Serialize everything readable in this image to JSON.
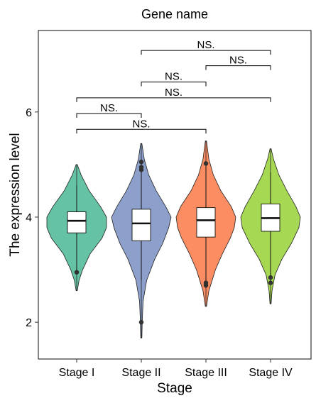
{
  "chart_data": {
    "type": "violin",
    "title": "Gene name",
    "xlabel": "Stage",
    "ylabel": "The expression level",
    "ylim": [
      1.3,
      7.55
    ],
    "yticks": [
      2,
      4,
      6
    ],
    "categories": [
      "Stage I",
      "Stage II",
      "Stage III",
      "Stage IV"
    ],
    "colors": [
      "#66c2a5",
      "#8da0cb",
      "#fc8d62",
      "#a6d854"
    ],
    "grid": false,
    "legend": "none",
    "series": [
      {
        "category": "Stage I",
        "range": [
          2.6,
          5.0
        ],
        "violin_profile": [
          [
            2.6,
            0.02
          ],
          [
            2.8,
            0.08
          ],
          [
            3.0,
            0.2
          ],
          [
            3.3,
            0.45
          ],
          [
            3.6,
            0.85
          ],
          [
            3.8,
            1.0
          ],
          [
            4.0,
            1.0
          ],
          [
            4.2,
            0.8
          ],
          [
            4.5,
            0.42
          ],
          [
            4.8,
            0.15
          ],
          [
            5.0,
            0.02
          ]
        ],
        "box": {
          "q1": 3.7,
          "median": 3.93,
          "q3": 4.1
        },
        "whiskers": [
          2.95,
          4.6
        ],
        "outliers": [
          2.95
        ]
      },
      {
        "category": "Stage II",
        "range": [
          1.7,
          5.4
        ],
        "violin_profile": [
          [
            1.7,
            0.02
          ],
          [
            2.0,
            0.03
          ],
          [
            2.4,
            0.06
          ],
          [
            2.8,
            0.18
          ],
          [
            3.2,
            0.45
          ],
          [
            3.5,
            0.72
          ],
          [
            3.8,
            0.92
          ],
          [
            4.0,
            1.0
          ],
          [
            4.2,
            0.82
          ],
          [
            4.5,
            0.5
          ],
          [
            4.8,
            0.25
          ],
          [
            5.1,
            0.1
          ],
          [
            5.4,
            0.02
          ]
        ],
        "box": {
          "q1": 3.55,
          "median": 3.88,
          "q3": 4.15
        },
        "whiskers": [
          2.8,
          5.0
        ],
        "outliers": [
          2.0,
          4.9,
          4.95,
          5.05
        ]
      },
      {
        "category": "Stage III",
        "range": [
          2.3,
          5.45
        ],
        "violin_profile": [
          [
            2.3,
            0.02
          ],
          [
            2.6,
            0.1
          ],
          [
            3.0,
            0.32
          ],
          [
            3.3,
            0.55
          ],
          [
            3.6,
            0.82
          ],
          [
            3.8,
            0.95
          ],
          [
            4.0,
            1.0
          ],
          [
            4.2,
            0.85
          ],
          [
            4.5,
            0.5
          ],
          [
            4.8,
            0.25
          ],
          [
            5.1,
            0.1
          ],
          [
            5.45,
            0.02
          ]
        ],
        "box": {
          "q1": 3.62,
          "median": 3.94,
          "q3": 4.18
        },
        "whiskers": [
          2.75,
          5.0
        ],
        "outliers": [
          2.7,
          2.75,
          5.02
        ]
      },
      {
        "category": "Stage IV",
        "range": [
          2.35,
          5.3
        ],
        "violin_profile": [
          [
            2.35,
            0.02
          ],
          [
            2.6,
            0.05
          ],
          [
            2.9,
            0.15
          ],
          [
            3.2,
            0.38
          ],
          [
            3.5,
            0.7
          ],
          [
            3.8,
            0.95
          ],
          [
            4.0,
            1.0
          ],
          [
            4.2,
            0.85
          ],
          [
            4.5,
            0.55
          ],
          [
            4.8,
            0.28
          ],
          [
            5.1,
            0.1
          ],
          [
            5.3,
            0.02
          ]
        ],
        "box": {
          "q1": 3.73,
          "median": 3.98,
          "q3": 4.25
        },
        "whiskers": [
          2.85,
          4.85
        ],
        "outliers": [
          2.75,
          2.85
        ]
      }
    ],
    "comparisons": [
      {
        "groups": [
          "Stage II",
          "Stage IV"
        ],
        "y": 7.17,
        "label": "NS."
      },
      {
        "groups": [
          "Stage III",
          "Stage IV"
        ],
        "y": 6.88,
        "label": "NS."
      },
      {
        "groups": [
          "Stage II",
          "Stage III"
        ],
        "y": 6.57,
        "label": "NS."
      },
      {
        "groups": [
          "Stage I",
          "Stage IV"
        ],
        "y": 6.27,
        "label": "NS."
      },
      {
        "groups": [
          "Stage I",
          "Stage II"
        ],
        "y": 5.97,
        "label": "NS."
      },
      {
        "groups": [
          "Stage I",
          "Stage III"
        ],
        "y": 5.67,
        "label": "NS."
      }
    ]
  }
}
